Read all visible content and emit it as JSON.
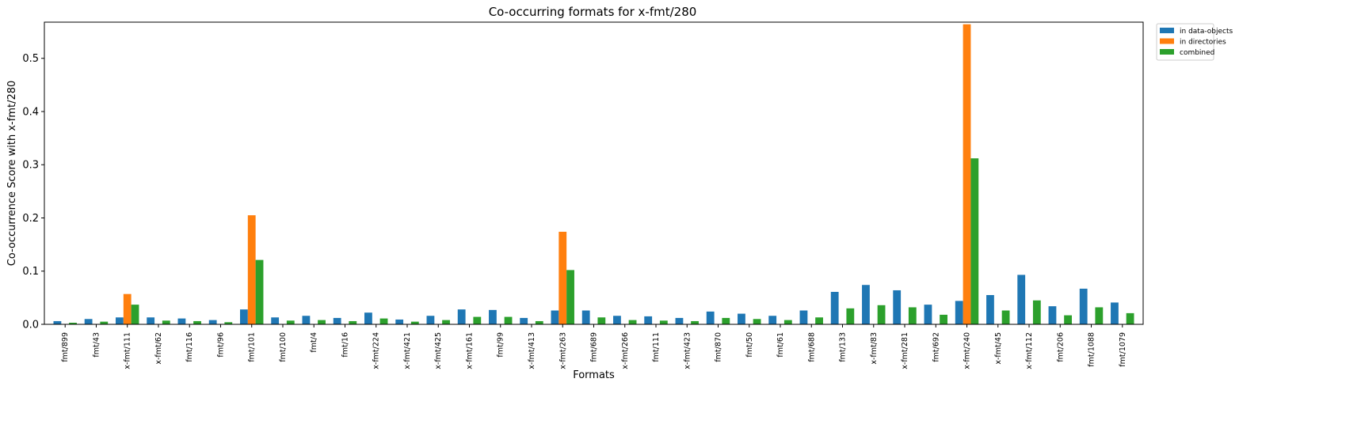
{
  "chart_data": {
    "type": "bar",
    "title": "Co-occurring formats for x-fmt/280",
    "xlabel": "Formats",
    "ylabel": "Co-occurrence Score with x-fmt/280",
    "ylim": [
      0,
      0.568
    ],
    "yticks": [
      0.0,
      0.1,
      0.2,
      0.3,
      0.4,
      0.5
    ],
    "ytick_labels": [
      "0.0",
      "0.1",
      "0.2",
      "0.3",
      "0.4",
      "0.5"
    ],
    "grid": false,
    "legend_position": "upper-right-outside",
    "categories": [
      "fmt/899",
      "fmt/43",
      "x-fmt/111",
      "x-fmt/62",
      "fmt/116",
      "fmt/96",
      "fmt/101",
      "fmt/100",
      "fmt/4",
      "fmt/16",
      "x-fmt/224",
      "x-fmt/421",
      "x-fmt/425",
      "x-fmt/161",
      "fmt/99",
      "x-fmt/413",
      "x-fmt/263",
      "fmt/689",
      "x-fmt/266",
      "fmt/111",
      "x-fmt/423",
      "fmt/870",
      "fmt/50",
      "fmt/61",
      "fmt/688",
      "fmt/133",
      "x-fmt/83",
      "x-fmt/281",
      "fmt/692",
      "x-fmt/240",
      "x-fmt/45",
      "x-fmt/112",
      "fmt/206",
      "fmt/1088",
      "fmt/1079"
    ],
    "series": [
      {
        "name": "in data-objects",
        "color": "#1f77b4",
        "values": [
          0.006,
          0.01,
          0.013,
          0.013,
          0.011,
          0.008,
          0.028,
          0.013,
          0.016,
          0.012,
          0.022,
          0.009,
          0.016,
          0.028,
          0.027,
          0.012,
          0.026,
          0.026,
          0.016,
          0.015,
          0.012,
          0.024,
          0.02,
          0.016,
          0.026,
          0.061,
          0.074,
          0.064,
          0.037,
          0.044,
          0.055,
          0.093,
          0.034,
          0.067,
          0.041
        ]
      },
      {
        "name": "in directories",
        "color": "#ff7f0e",
        "values": [
          0,
          0,
          0.057,
          0,
          0,
          0,
          0.205,
          0,
          0,
          0,
          0,
          0,
          0,
          0,
          0,
          0,
          0.174,
          0,
          0,
          0,
          0,
          0,
          0,
          0,
          0,
          0,
          0,
          0,
          0,
          0.564,
          0,
          0,
          0,
          0,
          0
        ]
      },
      {
        "name": "combined",
        "color": "#2ca02c",
        "values": [
          0.003,
          0.005,
          0.037,
          0.007,
          0.006,
          0.004,
          0.121,
          0.007,
          0.008,
          0.006,
          0.011,
          0.005,
          0.008,
          0.014,
          0.014,
          0.006,
          0.102,
          0.013,
          0.008,
          0.007,
          0.006,
          0.012,
          0.01,
          0.008,
          0.013,
          0.03,
          0.036,
          0.032,
          0.018,
          0.312,
          0.026,
          0.045,
          0.017,
          0.032,
          0.021
        ]
      }
    ]
  }
}
